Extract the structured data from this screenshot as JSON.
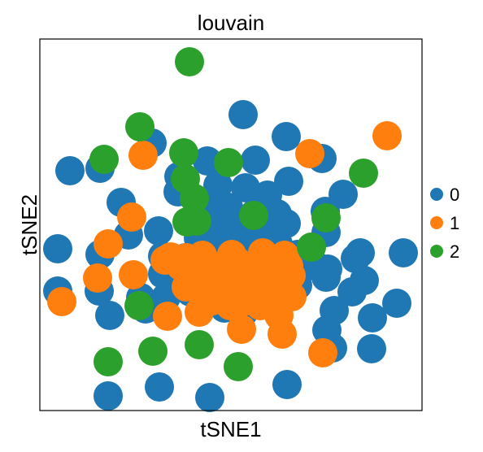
{
  "chart_data": {
    "type": "scatter",
    "title": "louvain",
    "xlabel": "tSNE1",
    "ylabel": "tSNE2",
    "xlim": [
      0,
      470
    ],
    "ylim": [
      0,
      434
    ],
    "grid": false,
    "legend": {
      "placement": "right",
      "entries": [
        "0",
        "1",
        "2"
      ]
    },
    "colors": {
      "0": "#1f77b4",
      "1": "#ff7f0e",
      "2": "#2ca02c"
    },
    "series": [
      {
        "name": "0",
        "points": [
          [
            250,
            362
          ],
          [
            138,
            327
          ],
          [
            303,
            335
          ],
          [
            74,
            296
          ],
          [
            206,
            305
          ],
          [
            265,
            306
          ],
          [
            171,
            286
          ],
          [
            306,
            280
          ],
          [
            347,
            308
          ],
          [
            219,
            275
          ],
          [
            253,
            272
          ],
          [
            280,
            263
          ],
          [
            37,
            293
          ],
          [
            373,
            264
          ],
          [
            100,
            254
          ],
          [
            170,
            267
          ],
          [
            351,
            243
          ],
          [
            232,
            248
          ],
          [
            212,
            244
          ],
          [
            264,
            240
          ],
          [
            292,
            240
          ],
          [
            109,
            214
          ],
          [
            146,
            219
          ],
          [
            195,
            210
          ],
          [
            227,
            223
          ],
          [
            255,
            224
          ],
          [
            277,
            225
          ],
          [
            303,
            228
          ],
          [
            352,
            217
          ],
          [
            22,
            197
          ],
          [
            74,
            190
          ],
          [
            151,
            188
          ],
          [
            199,
            204
          ],
          [
            215,
            210
          ],
          [
            240,
            203
          ],
          [
            259,
            208
          ],
          [
            272,
            203
          ],
          [
            293,
            203
          ],
          [
            317,
            190
          ],
          [
            394,
            192
          ],
          [
            447,
            192
          ],
          [
            22,
            145
          ],
          [
            73,
            145
          ],
          [
            124,
            137
          ],
          [
            151,
            166
          ],
          [
            179,
            186
          ],
          [
            205,
            179
          ],
          [
            215,
            198
          ],
          [
            228,
            175
          ],
          [
            255,
            183
          ],
          [
            273,
            177
          ],
          [
            294,
            170
          ],
          [
            320,
            177
          ],
          [
            341,
            175
          ],
          [
            388,
            185
          ],
          [
            399,
            158
          ],
          [
            205,
            155
          ],
          [
            258,
            149
          ],
          [
            280,
            159
          ],
          [
            297,
            165
          ],
          [
            317,
            152
          ],
          [
            130,
            123
          ],
          [
            155,
            137
          ],
          [
            227,
            124
          ],
          [
            250,
            118
          ],
          [
            266,
            129
          ],
          [
            291,
            125
          ],
          [
            293,
            134
          ],
          [
            298,
            139
          ],
          [
            185,
            144
          ],
          [
            384,
            144
          ],
          [
            439,
            130
          ],
          [
            409,
            112
          ],
          [
            352,
            162
          ],
          [
            353,
            97
          ],
          [
            86,
            115
          ],
          [
            354,
            172
          ],
          [
            362,
            121
          ],
          [
            84,
            16
          ],
          [
            147,
            27
          ],
          [
            209,
            14
          ],
          [
            304,
            30
          ],
          [
            360,
            75
          ],
          [
            408,
            74
          ]
        ]
      },
      {
        "name": "1",
        "points": [
          [
            427,
            336
          ],
          [
            127,
            312
          ],
          [
            332,
            314
          ],
          [
            113,
            236
          ],
          [
            84,
            203
          ],
          [
            71,
            161
          ],
          [
            115,
            165
          ],
          [
            161,
            187
          ],
          [
            200,
            189
          ],
          [
            236,
            190
          ],
          [
            274,
            192
          ],
          [
            301,
            189
          ],
          [
            173,
            176
          ],
          [
            197,
            162
          ],
          [
            226,
            164
          ],
          [
            253,
            164
          ],
          [
            266,
            171
          ],
          [
            282,
            172
          ],
          [
            306,
            176
          ],
          [
            248,
            153
          ],
          [
            289,
            176
          ],
          [
            280,
            145
          ],
          [
            180,
            150
          ],
          [
            157,
            114
          ],
          [
            154,
            183
          ],
          [
            230,
            180
          ],
          [
            216,
            175
          ],
          [
            309,
            164
          ],
          [
            310,
            138
          ],
          [
            271,
            127
          ],
          [
            294,
            115
          ],
          [
            248,
            98
          ],
          [
            196,
            119
          ],
          [
            230,
            134
          ],
          [
            243,
            181
          ],
          [
            180,
            186
          ],
          [
            256,
            138
          ],
          [
            27,
            132
          ],
          [
            220,
            144
          ],
          [
            348,
            69
          ],
          [
            298,
            92
          ],
          [
            212,
            133
          ],
          [
            201,
            150
          ],
          [
            234,
            127
          ],
          [
            250,
            132
          ]
        ]
      },
      {
        "name": "2",
        "points": [
          [
            184,
            427
          ],
          [
            123,
            347
          ],
          [
            79,
            307
          ],
          [
            177,
            315
          ],
          [
            232,
            303
          ],
          [
            179,
            283
          ],
          [
            190,
            259
          ],
          [
            398,
            290
          ],
          [
            352,
            235
          ],
          [
            334,
            199
          ],
          [
            181,
            230
          ],
          [
            263,
            238
          ],
          [
            122,
            127
          ],
          [
            139,
            71
          ],
          [
            196,
            79
          ],
          [
            84,
            58
          ],
          [
            244,
            52
          ],
          [
            193,
            231
          ]
        ]
      }
    ]
  }
}
